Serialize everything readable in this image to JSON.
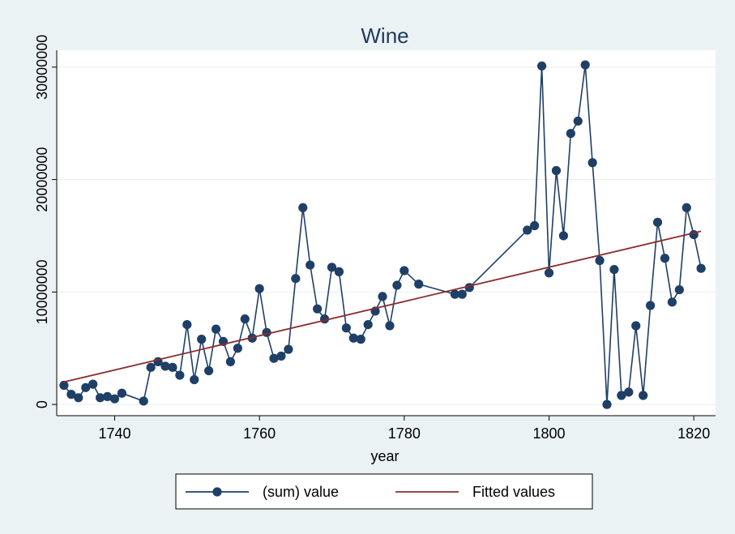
{
  "chart_data": {
    "type": "line",
    "title": "Wine",
    "xlabel": "year",
    "ylabel": "",
    "xlim": [
      1732,
      1823
    ],
    "ylim": [
      -1000000,
      31500000
    ],
    "x_ticks": [
      1740,
      1760,
      1780,
      1800,
      1820
    ],
    "x_tick_labels": [
      "1740",
      "1760",
      "1780",
      "1800",
      "1820"
    ],
    "y_ticks": [
      0,
      10000000,
      20000000,
      30000000
    ],
    "y_tick_labels": [
      "0",
      "10000000",
      "20000000",
      "30000000"
    ],
    "grid": "horizontal",
    "legend_position": "bottom",
    "series": [
      {
        "name": "(sum) value",
        "style": "line-with-markers",
        "color": "#1f3f66",
        "x": [
          1733,
          1734,
          1735,
          1736,
          1737,
          1738,
          1739,
          1740,
          1741,
          1744,
          1745,
          1746,
          1747,
          1748,
          1749,
          1750,
          1751,
          1752,
          1753,
          1754,
          1755,
          1756,
          1757,
          1758,
          1759,
          1760,
          1761,
          1762,
          1763,
          1764,
          1765,
          1766,
          1767,
          1768,
          1769,
          1770,
          1771,
          1772,
          1773,
          1774,
          1775,
          1776,
          1777,
          1778,
          1779,
          1780,
          1782,
          1787,
          1788,
          1789,
          1797,
          1798,
          1799,
          1800,
          1801,
          1802,
          1803,
          1804,
          1805,
          1806,
          1807,
          1808,
          1809,
          1810,
          1811,
          1812,
          1813,
          1814,
          1815,
          1816,
          1817,
          1818,
          1819,
          1820,
          1821
        ],
        "y": [
          1700000,
          900000,
          600000,
          1500000,
          1800000,
          600000,
          700000,
          500000,
          1000000,
          300000,
          3300000,
          3800000,
          3400000,
          3300000,
          2600000,
          7100000,
          2200000,
          5800000,
          3000000,
          6700000,
          5600000,
          3800000,
          5000000,
          7600000,
          5900000,
          10300000,
          6400000,
          4100000,
          4300000,
          4900000,
          11200000,
          17500000,
          12400000,
          8500000,
          7600000,
          12200000,
          11800000,
          6800000,
          5900000,
          5800000,
          7100000,
          8300000,
          9600000,
          7000000,
          10600000,
          11900000,
          10700000,
          9800000,
          9800000,
          10400000,
          15500000,
          15900000,
          30100000,
          11700000,
          20800000,
          15000000,
          24100000,
          25200000,
          30200000,
          21500000,
          12800000,
          0,
          12000000,
          800000,
          1100000,
          7000000,
          800000,
          8800000,
          16200000,
          13000000,
          9100000,
          10200000,
          17500000,
          15100000,
          12100000
        ]
      },
      {
        "name": "Fitted values",
        "style": "line",
        "color": "#8b2b2b",
        "x": [
          1733,
          1821
        ],
        "y": [
          2000000,
          15400000
        ]
      }
    ]
  }
}
